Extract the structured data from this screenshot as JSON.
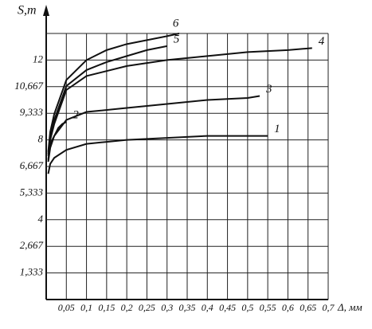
{
  "chart_data": {
    "type": "line",
    "y_label": "S,т",
    "x_label": "Δ, мм",
    "xlim": [
      0,
      0.7
    ],
    "ylim": [
      0,
      13.333
    ],
    "xticks": [
      {
        "value": 0.05,
        "label": "0,05"
      },
      {
        "value": 0.1,
        "label": "0,1"
      },
      {
        "value": 0.15,
        "label": "0,15"
      },
      {
        "value": 0.2,
        "label": "0,2"
      },
      {
        "value": 0.25,
        "label": "0,25"
      },
      {
        "value": 0.3,
        "label": "0,3"
      },
      {
        "value": 0.35,
        "label": "0,35"
      },
      {
        "value": 0.4,
        "label": "0,4"
      },
      {
        "value": 0.45,
        "label": "0,45"
      },
      {
        "value": 0.5,
        "label": "0,5"
      },
      {
        "value": 0.55,
        "label": "0,55"
      },
      {
        "value": 0.6,
        "label": "0,6"
      },
      {
        "value": 0.65,
        "label": "0,65"
      },
      {
        "value": 0.7,
        "label": "0,7"
      }
    ],
    "yticks": [
      {
        "value": 1.333,
        "label": "1,333"
      },
      {
        "value": 2.667,
        "label": "2,667"
      },
      4,
      {
        "value": 5.333,
        "label": "5,333"
      },
      {
        "value": 6.667,
        "label": "6,667"
      },
      8,
      {
        "value": 9.333,
        "label": "9,333"
      },
      {
        "value": 10.667,
        "label": "10,667"
      },
      12
    ],
    "grid": true,
    "series": [
      {
        "name": "1",
        "color": "#111",
        "x": [
          0.005,
          0.01,
          0.02,
          0.05,
          0.1,
          0.15,
          0.2,
          0.3,
          0.4,
          0.5,
          0.55
        ],
        "values": [
          6.3,
          6.8,
          7.1,
          7.5,
          7.8,
          7.9,
          8,
          8.1,
          8.2,
          8.2,
          8.2
        ]
      },
      {
        "name": "2",
        "color": "#111",
        "x": [
          0.005,
          0.01,
          0.02,
          0.03,
          0.04,
          0.05
        ],
        "values": [
          6.9,
          7.6,
          8.2,
          8.6,
          8.8,
          8.9
        ]
      },
      {
        "name": "3",
        "color": "#111",
        "x": [
          0.005,
          0.01,
          0.02,
          0.05,
          0.1,
          0.2,
          0.3,
          0.4,
          0.5,
          0.53
        ],
        "values": [
          7,
          7.8,
          8.2,
          9,
          9.4,
          9.6,
          9.8,
          10,
          10.1,
          10.2
        ]
      },
      {
        "name": "4",
        "color": "#111",
        "x": [
          0.005,
          0.01,
          0.02,
          0.05,
          0.1,
          0.2,
          0.3,
          0.4,
          0.5,
          0.6,
          0.66
        ],
        "values": [
          7.2,
          8,
          8.8,
          10.5,
          11.2,
          11.7,
          12,
          12.2,
          12.4,
          12.5,
          12.6
        ]
      },
      {
        "name": "5",
        "color": "#111",
        "x": [
          0.005,
          0.01,
          0.02,
          0.05,
          0.1,
          0.15,
          0.2,
          0.25,
          0.3
        ],
        "values": [
          7.3,
          8.2,
          9,
          10.7,
          11.5,
          11.9,
          12.2,
          12.5,
          12.7
        ]
      },
      {
        "name": "6",
        "color": "#111",
        "x": [
          0.005,
          0.01,
          0.02,
          0.05,
          0.1,
          0.15,
          0.2,
          0.25,
          0.3,
          0.33
        ],
        "values": [
          7.4,
          8.4,
          9.3,
          11,
          12,
          12.5,
          12.8,
          13,
          13.2,
          13.333
        ]
      }
    ]
  }
}
